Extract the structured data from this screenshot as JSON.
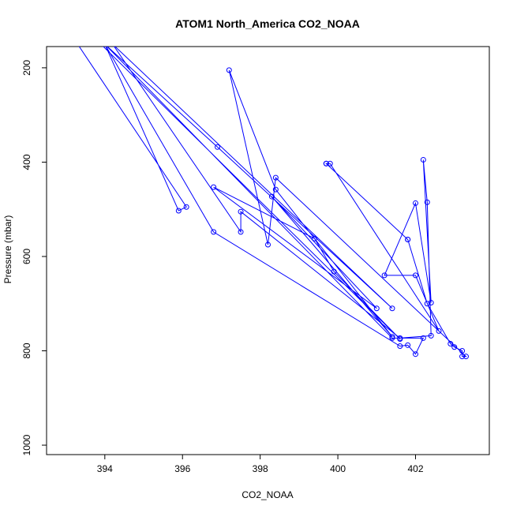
{
  "chart_data": {
    "type": "line",
    "title": "ATOM1 North_America CO2_NOAA",
    "xlabel": "CO2_NOAA",
    "ylabel": "Pressure (mbar)",
    "xlim": [
      392.5,
      403.9
    ],
    "ylim": [
      1020,
      155
    ],
    "y_reversed": true,
    "x_ticks": [
      "394",
      "396",
      "398",
      "400",
      "402"
    ],
    "x_tick_values": [
      394,
      396,
      398,
      400,
      402
    ],
    "y_ticks": [
      "200",
      "400",
      "600",
      "800",
      "1000"
    ],
    "y_tick_values": [
      200,
      400,
      600,
      800,
      1000
    ],
    "grid": false,
    "series": [
      {
        "color": "#0000ff",
        "marker": "open-circle",
        "points": [
          [
            393.3,
            150
          ],
          [
            396.1,
            495
          ],
          [
            395.9,
            503
          ],
          [
            394.0,
            150
          ],
          [
            396.8,
            548
          ],
          [
            401.6,
            790
          ],
          [
            401.8,
            788
          ],
          [
            402.0,
            807
          ],
          [
            402.2,
            773
          ],
          [
            401.4,
            773
          ],
          [
            394.0,
            150
          ],
          [
            396.9,
            368
          ],
          [
            401.4,
            710
          ],
          [
            394.2,
            150
          ],
          [
            397.5,
            548
          ],
          [
            397.5,
            505
          ],
          [
            401.6,
            773
          ],
          [
            402.4,
            768
          ],
          [
            402.3,
            485
          ],
          [
            402.2,
            395
          ],
          [
            402.4,
            698
          ],
          [
            402.0,
            487
          ],
          [
            401.2,
            640
          ],
          [
            402.0,
            640
          ],
          [
            402.6,
            758
          ],
          [
            399.8,
            403
          ],
          [
            399.7,
            403
          ],
          [
            399.7,
            403
          ],
          [
            401.8,
            564
          ],
          [
            401.8,
            564
          ],
          [
            402.3,
            700
          ],
          [
            402.9,
            785
          ],
          [
            403.0,
            792
          ],
          [
            403.2,
            800
          ],
          [
            403.2,
            812
          ],
          [
            403.3,
            812
          ],
          [
            398.4,
            433
          ],
          [
            398.2,
            575
          ],
          [
            397.2,
            205
          ],
          [
            398.4,
            458
          ],
          [
            401.4,
            770
          ],
          [
            398.3,
            473
          ],
          [
            401.0,
            710
          ],
          [
            396.8,
            453
          ],
          [
            399.4,
            562
          ],
          [
            399.9,
            632
          ],
          [
            401.6,
            775
          ],
          [
            393.9,
            150
          ]
        ]
      }
    ]
  }
}
